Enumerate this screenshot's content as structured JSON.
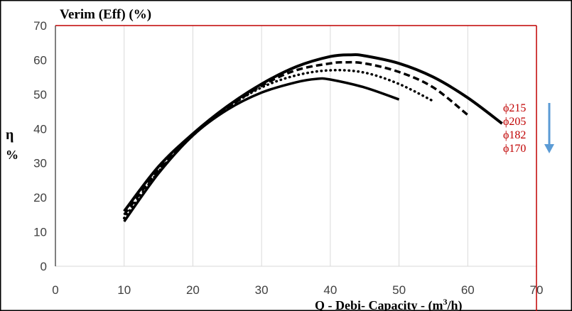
{
  "chart_data": {
    "type": "line",
    "title": "Verim (Eff) (%)",
    "xlabel_prefix": "Q - Debi- Capacity - (m",
    "xlabel_sup": "3",
    "xlabel_suffix": "/h)",
    "ylabel_symbol": "η",
    "ylabel_unit": "%",
    "xlim": [
      0,
      70
    ],
    "ylim": [
      0,
      70
    ],
    "xticks": [
      "0",
      "10",
      "20",
      "30",
      "40",
      "50",
      "60",
      "70"
    ],
    "yticks": [
      "0",
      "10",
      "20",
      "30",
      "40",
      "50",
      "60",
      "70"
    ],
    "grid": "vertical",
    "legend_position": "right",
    "colors": {
      "series": "#000000",
      "legend_text": "#c00000",
      "border": "#c00000",
      "arrow": "#5b9bd5",
      "grid": "#d9d9d9"
    },
    "series": [
      {
        "name": "ϕ215",
        "dash": "solid",
        "x": [
          10,
          15,
          20,
          25,
          30,
          35,
          40,
          43,
          45,
          50,
          55,
          60,
          65
        ],
        "y": [
          16,
          29,
          38.5,
          46.5,
          53,
          58,
          61,
          61.5,
          61.2,
          59,
          55,
          49,
          41.5
        ]
      },
      {
        "name": "ϕ205",
        "dash": "dashed",
        "x": [
          10,
          15,
          20,
          25,
          30,
          35,
          40,
          42,
          45,
          50,
          55,
          60
        ],
        "y": [
          15,
          28,
          38.5,
          46,
          52.5,
          57,
          59,
          59.3,
          59,
          56.5,
          52,
          44
        ]
      },
      {
        "name": "ϕ182",
        "dash": "dotted",
        "x": [
          10,
          15,
          20,
          25,
          30,
          35,
          40,
          45,
          50,
          55
        ],
        "y": [
          14,
          27.5,
          38,
          46,
          52,
          55.5,
          57,
          56.3,
          53,
          48
        ]
      },
      {
        "name": "ϕ170",
        "dash": "solid",
        "x": [
          10,
          15,
          20,
          25,
          30,
          35,
          38,
          40,
          45,
          50
        ],
        "y": [
          13,
          27,
          38,
          45.5,
          50.5,
          53.5,
          54.5,
          54.3,
          52,
          48.5
        ]
      }
    ]
  }
}
